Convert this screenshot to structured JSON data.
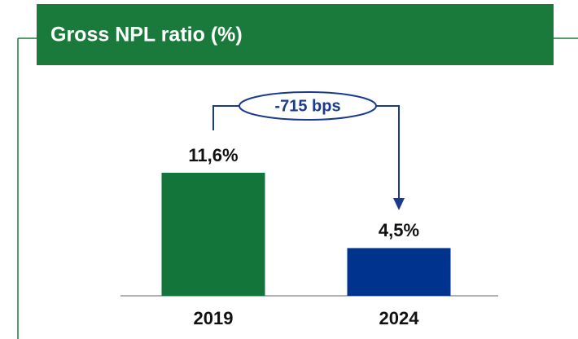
{
  "chart_data": {
    "type": "bar",
    "title": "Gross NPL ratio (%)",
    "categories": [
      "2019",
      "2024"
    ],
    "values": [
      11.6,
      4.5
    ],
    "value_labels": [
      "11,6%",
      "4,5%"
    ],
    "colors": [
      "#13753a",
      "#00338d"
    ],
    "annotation": "-715 bps"
  }
}
